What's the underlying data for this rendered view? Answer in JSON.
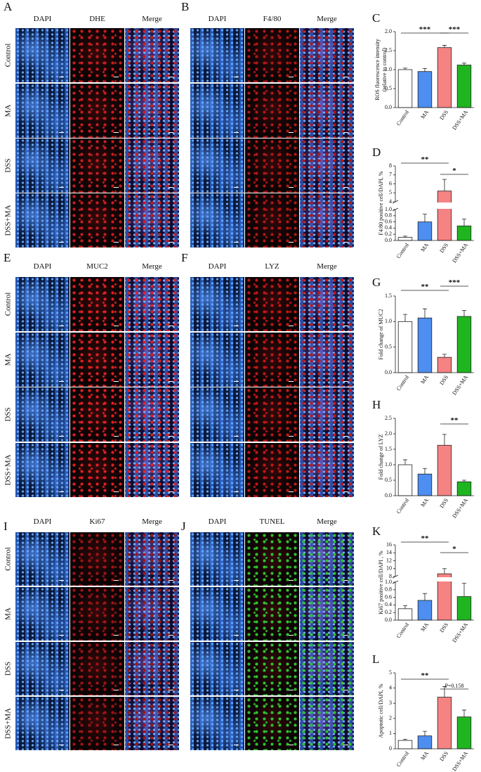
{
  "panels": [
    {
      "label": "A",
      "columns": [
        "DAPI",
        "DHE",
        "Merge"
      ],
      "rows": [
        "Control",
        "MA",
        "DSS",
        "DSS+MA"
      ],
      "stain_color": "#c81e1e"
    },
    {
      "label": "B",
      "columns": [
        "DAPI",
        "F4/80",
        "Merge"
      ],
      "stain_color": "#b01818"
    },
    {
      "label": "E",
      "columns": [
        "DAPI",
        "MUC2",
        "Merge"
      ],
      "rows": [
        "Control",
        "MA",
        "DSS",
        "DSS+MA"
      ],
      "stain_color": "#e02020"
    },
    {
      "label": "F",
      "columns": [
        "DAPI",
        "LYZ",
        "Merge"
      ],
      "stain_color": "#c01818"
    },
    {
      "label": "I",
      "columns": [
        "DAPI",
        "Ki67",
        "Merge"
      ],
      "rows": [
        "Control",
        "MA",
        "DSS",
        "DSS+MA"
      ],
      "stain_color": "#a01515"
    },
    {
      "label": "J",
      "columns": [
        "DAPI",
        "TUNEL",
        "Merge"
      ],
      "stain_color": "#30c030"
    }
  ],
  "chart_data": [
    {
      "type": "bar",
      "panel_label": "C",
      "y_label": [
        "ROS fluorescence intensity",
        "(relative to control)"
      ],
      "categories": [
        "Control",
        "MA",
        "DSS",
        "DSS+MA"
      ],
      "values": [
        1.0,
        0.95,
        1.58,
        1.12
      ],
      "errors": [
        0.04,
        0.08,
        0.06,
        0.05
      ],
      "colors": [
        "#ffffff",
        "#4d8ef0",
        "#f58383",
        "#1fb51f"
      ],
      "ylim": [
        0,
        2
      ],
      "yticks": [
        {
          "value": 0,
          "label": "0.0"
        },
        0.5,
        {
          "value": 1,
          "label": "1.0"
        },
        1.5,
        {
          "value": 2,
          "label": "2.0"
        }
      ],
      "annotations": [
        {
          "text": "***",
          "between": [
            "Control",
            "DSS"
          ]
        },
        {
          "text": "***",
          "between": [
            "DSS",
            "DSS+MA"
          ]
        }
      ]
    },
    {
      "type": "bar",
      "panel_label": "D",
      "y_label": "F4/80 positive cell/DAPI, %",
      "categories": [
        "Control",
        "MA",
        "DSS",
        "DSS+MA"
      ],
      "values": [
        0.1,
        0.6,
        5.2,
        0.47
      ],
      "errors": [
        0.04,
        0.25,
        1.3,
        0.22
      ],
      "colors": [
        "#ffffff",
        "#4d8ef0",
        "#f58383",
        "#1fb51f"
      ],
      "ylim": [
        0,
        8
      ],
      "ybreak": [
        1,
        4
      ],
      "yticks": [
        {
          "value": 0,
          "label": "0.0"
        },
        0.2,
        0.4,
        0.6,
        0.8,
        {
          "value": 1,
          "label": "1.0"
        },
        4,
        5,
        6,
        7,
        8
      ],
      "annotations": [
        {
          "text": "**",
          "between": [
            "Control",
            "DSS"
          ]
        },
        {
          "text": "*",
          "between": [
            "DSS",
            "DSS+MA"
          ]
        }
      ]
    },
    {
      "type": "bar",
      "panel_label": "G",
      "y_label": "Fold change of MUC2",
      "categories": [
        "Control",
        "MA",
        "DSS",
        "DSS+MA"
      ],
      "values": [
        1.0,
        1.07,
        0.3,
        1.1
      ],
      "errors": [
        0.14,
        0.18,
        0.06,
        0.12
      ],
      "colors": [
        "#ffffff",
        "#4d8ef0",
        "#f58383",
        "#1fb51f"
      ],
      "ylim": [
        0,
        1.5
      ],
      "yticks": [
        {
          "value": 0,
          "label": "0.0"
        },
        0.5,
        {
          "value": 1,
          "label": "1.0"
        },
        1.5
      ],
      "annotations": [
        {
          "text": "**",
          "between": [
            "Control",
            "DSS"
          ]
        },
        {
          "text": "***",
          "between": [
            "DSS",
            "DSS+MA"
          ]
        }
      ]
    },
    {
      "type": "bar",
      "panel_label": "H",
      "y_label": "Fold change of LYZ",
      "categories": [
        "Control",
        "MA",
        "DSS",
        "DSS+MA"
      ],
      "values": [
        1.0,
        0.7,
        1.63,
        0.45
      ],
      "errors": [
        0.16,
        0.18,
        0.35,
        0.05
      ],
      "colors": [
        "#ffffff",
        "#4d8ef0",
        "#f58383",
        "#1fb51f"
      ],
      "ylim": [
        0,
        2.5
      ],
      "yticks": [
        {
          "value": 0,
          "label": "0.0"
        },
        0.5,
        {
          "value": 1,
          "label": "1.0"
        },
        1.5,
        {
          "value": 2,
          "label": "2.0"
        },
        2.5
      ],
      "annotations": [
        {
          "text": "**",
          "between": [
            "DSS",
            "DSS+MA"
          ]
        }
      ]
    },
    {
      "type": "bar",
      "panel_label": "K",
      "y_label": "Ki67 positive cell/DAPI , %",
      "categories": [
        "Control",
        "MA",
        "DSS",
        "DSS+MA"
      ],
      "values": [
        0.3,
        0.52,
        8.7,
        0.62
      ],
      "errors": [
        0.08,
        0.18,
        1.3,
        0.35
      ],
      "colors": [
        "#ffffff",
        "#4d8ef0",
        "#f58383",
        "#1fb51f"
      ],
      "ylim": [
        0,
        16
      ],
      "ybreak": [
        1,
        8
      ],
      "yticks": [
        {
          "value": 0,
          "label": "0.0"
        },
        0.2,
        0.4,
        0.6,
        0.8,
        {
          "value": 1,
          "label": "1.0"
        },
        8,
        10,
        12,
        14,
        16
      ],
      "annotations": [
        {
          "text": "**",
          "between": [
            "Control",
            "DSS"
          ]
        },
        {
          "text": "*",
          "between": [
            "DSS",
            "DSS+MA"
          ]
        }
      ]
    },
    {
      "type": "bar",
      "panel_label": "L",
      "y_label": "Apoptotic cell/DAPI, %",
      "categories": [
        "Control",
        "MA",
        "DSS",
        "DSS+MA"
      ],
      "values": [
        0.55,
        0.85,
        3.4,
        2.1
      ],
      "errors": [
        0.07,
        0.3,
        0.7,
        0.45
      ],
      "colors": [
        "#ffffff",
        "#4d8ef0",
        "#f58383",
        "#1fb51f"
      ],
      "ylim": [
        0,
        5
      ],
      "yticks": [
        0,
        1,
        2,
        3,
        4,
        5
      ],
      "annotations": [
        {
          "text": "**",
          "between": [
            "Control",
            "DSS"
          ]
        },
        {
          "text": "P=0.158",
          "between": [
            "DSS",
            "DSS+MA"
          ]
        }
      ]
    }
  ]
}
